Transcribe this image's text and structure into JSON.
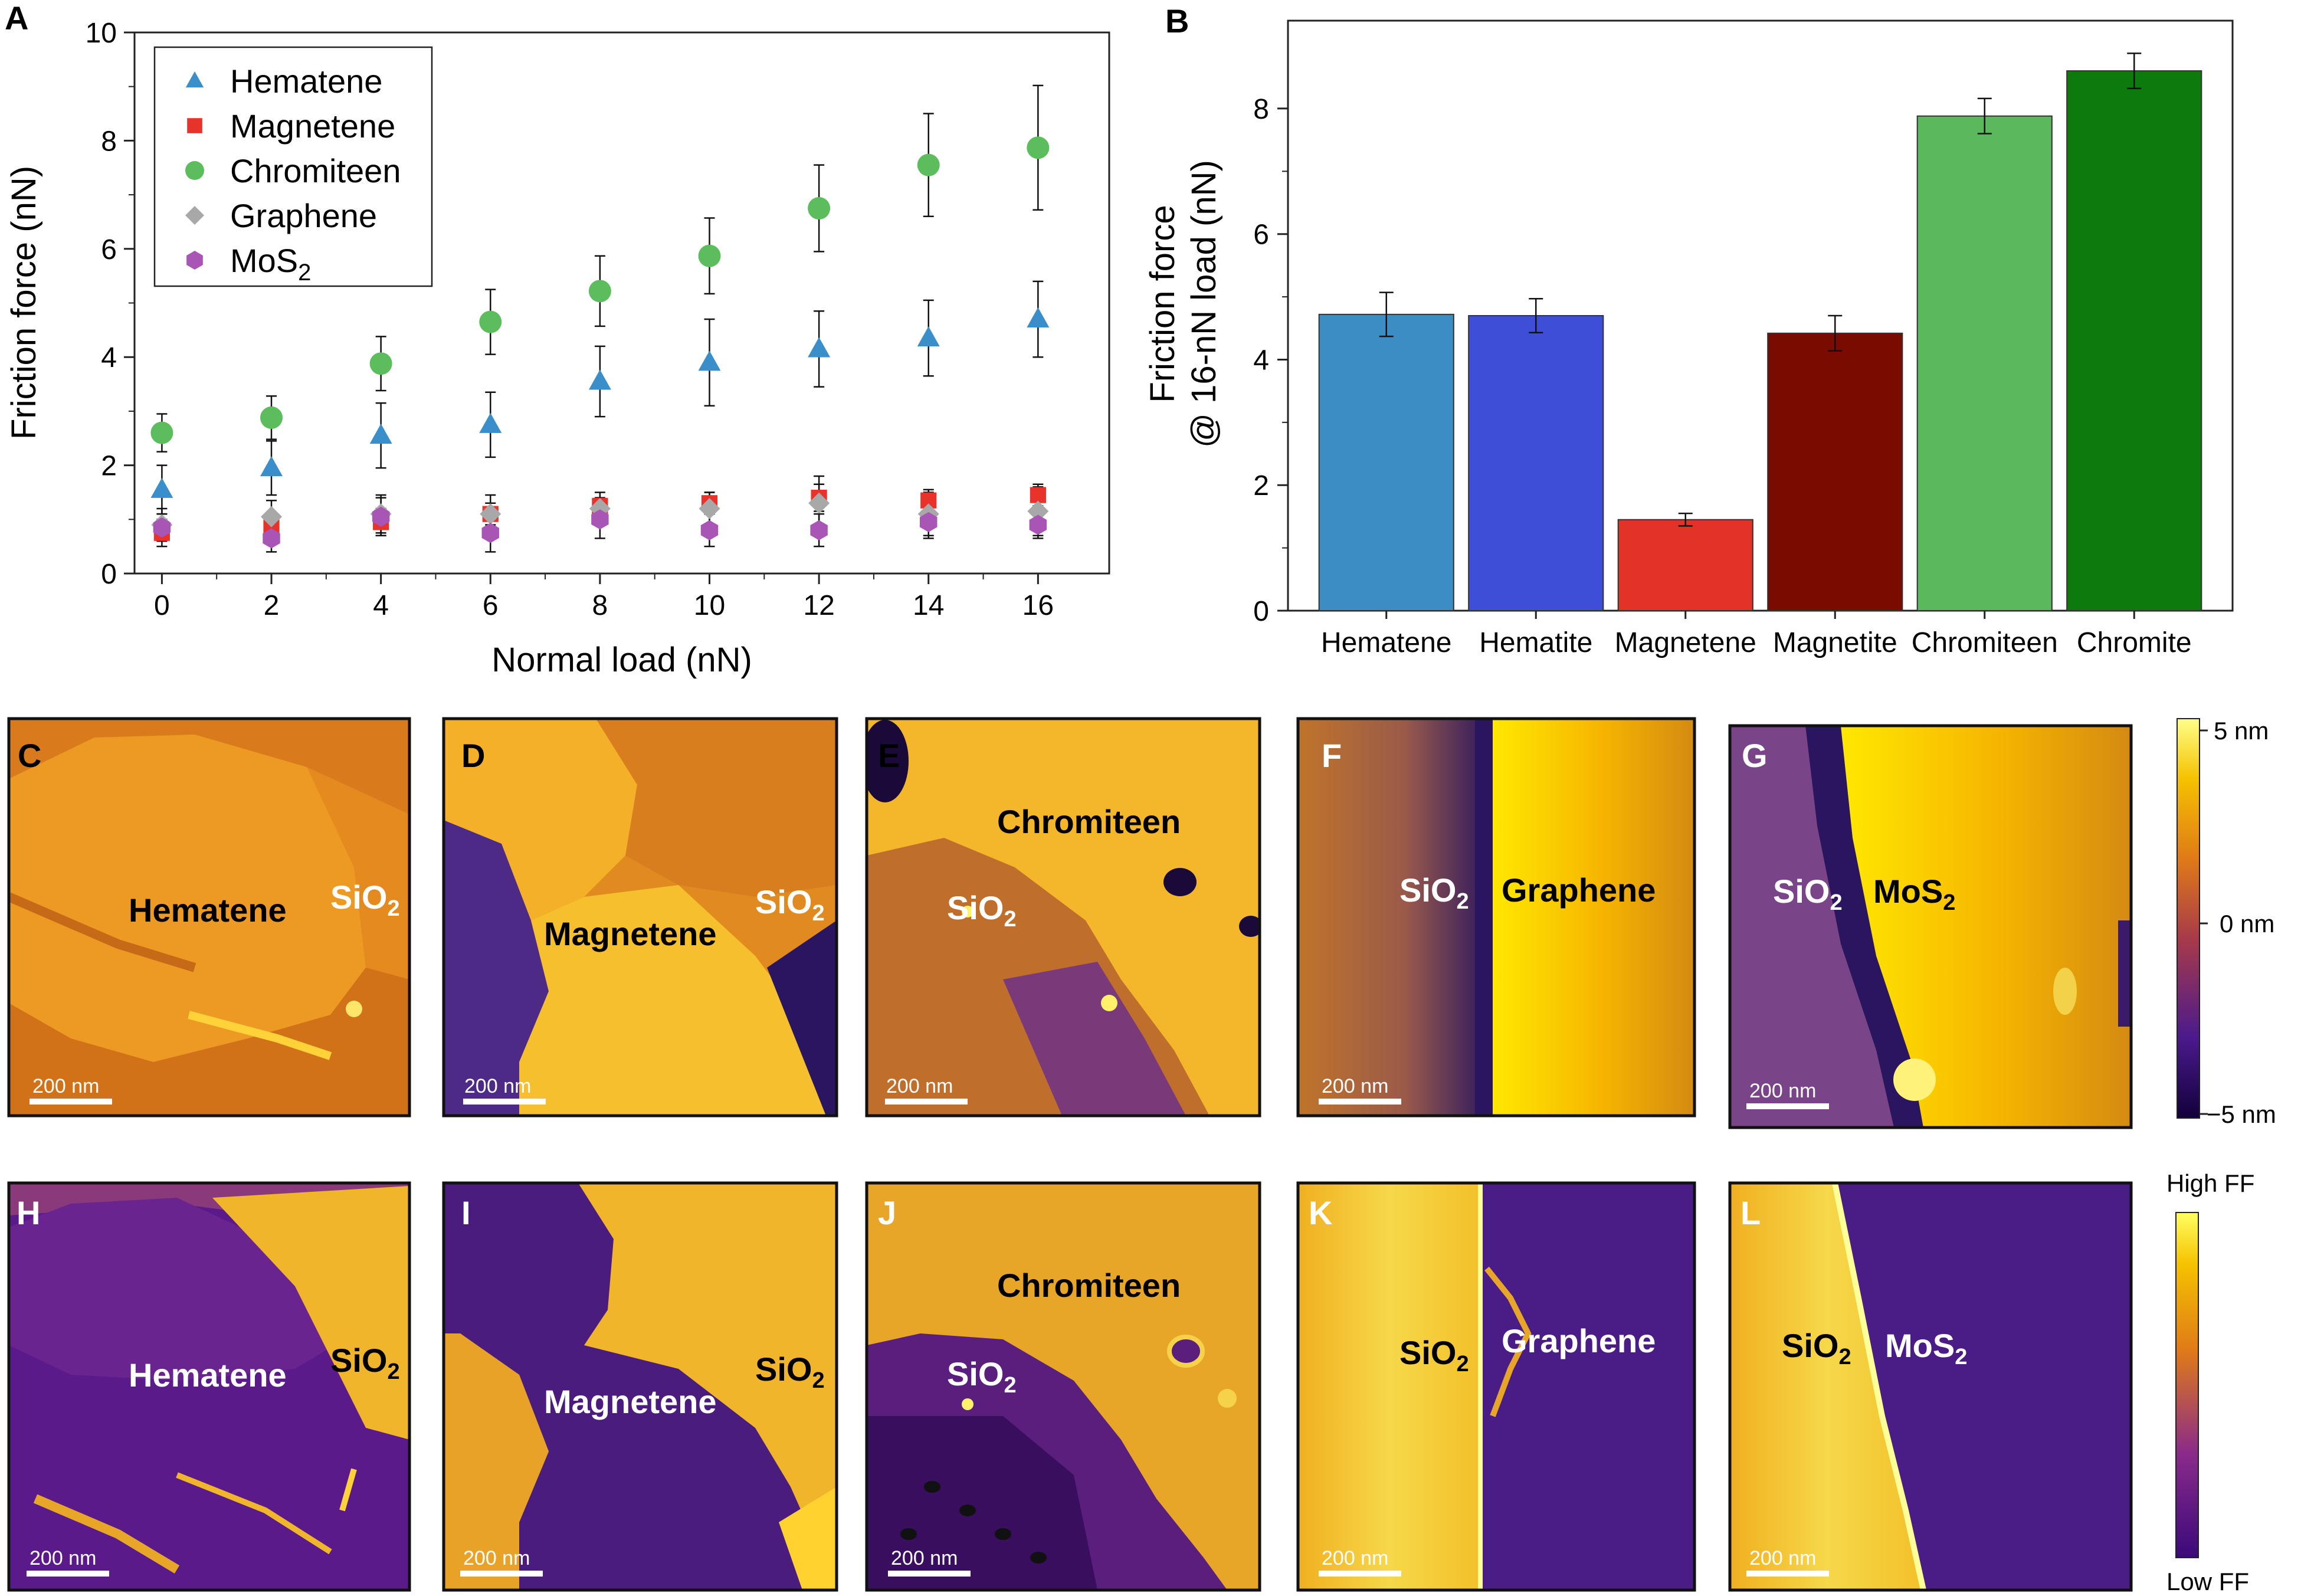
{
  "colors": {
    "hematene": "#3a8fcb",
    "magnetene": "#e8332a",
    "chromiteen": "#5cbd5c",
    "graphene": "#a8a8a8",
    "mos2": "#a855b5",
    "bar_hematene": "#3c8dc4",
    "bar_hematite": "#3f4ed6",
    "bar_magnetene": "#e33228",
    "bar_magnetite": "#7a0b00",
    "bar_chromiteen": "#5cb85c",
    "bar_chromite": "#0d7a0d"
  },
  "chart_data": [
    {
      "type": "scatter",
      "panel": "A",
      "xlabel": "Normal load (nN)",
      "ylabel": "Friction force (nN)",
      "xlim": [
        -0.5,
        17.3
      ],
      "ylim": [
        0,
        10
      ],
      "xticks": [
        0,
        2,
        4,
        6,
        8,
        10,
        12,
        14,
        16
      ],
      "yticks": [
        0,
        2,
        4,
        6,
        8,
        10
      ],
      "legend_position": "top-left",
      "x": [
        0,
        2,
        4,
        6,
        8,
        10,
        12,
        14,
        16
      ],
      "series": [
        {
          "name": "Hematene",
          "marker": "triangle",
          "color_key": "hematene",
          "values": [
            1.55,
            1.95,
            2.55,
            2.75,
            3.55,
            3.9,
            4.15,
            4.35,
            4.7
          ],
          "errors": [
            0.45,
            0.5,
            0.6,
            0.6,
            0.65,
            0.8,
            0.7,
            0.7,
            0.7
          ]
        },
        {
          "name": "Magnetene",
          "marker": "square",
          "color_key": "magnetene",
          "values": [
            0.75,
            0.85,
            0.95,
            1.1,
            1.25,
            1.3,
            1.4,
            1.35,
            1.45
          ],
          "errors": [
            0.25,
            0.25,
            0.25,
            0.2,
            0.15,
            0.2,
            0.25,
            0.2,
            0.2
          ]
        },
        {
          "name": "Chromiteen",
          "marker": "circle",
          "color_key": "chromiteen",
          "values": [
            2.6,
            2.88,
            3.88,
            4.65,
            5.22,
            5.87,
            6.75,
            7.55,
            7.87
          ],
          "errors": [
            0.35,
            0.4,
            0.5,
            0.6,
            0.65,
            0.7,
            0.8,
            0.95,
            1.15
          ]
        },
        {
          "name": "Graphene",
          "marker": "diamond",
          "color_key": "graphene",
          "values": [
            0.9,
            1.05,
            1.1,
            1.1,
            1.2,
            1.2,
            1.3,
            1.1,
            1.15
          ],
          "errors": [
            0.3,
            0.3,
            0.35,
            0.35,
            0.3,
            0.3,
            0.5,
            0.4,
            0.45
          ]
        },
        {
          "name": "MoS2",
          "marker": "hexagon",
          "color_key": "mos2",
          "values": [
            0.85,
            0.65,
            1.05,
            0.75,
            1.0,
            0.8,
            0.8,
            0.95,
            0.9
          ],
          "errors": [
            0.25,
            0.25,
            0.35,
            0.35,
            0.35,
            0.3,
            0.3,
            0.3,
            0.25
          ]
        }
      ]
    },
    {
      "type": "bar",
      "panel": "B",
      "ylabel_line1": "Friction force",
      "ylabel_line2": "@ 16-nN load (nN)",
      "ylim": [
        0,
        9.4
      ],
      "yticks": [
        0,
        2,
        4,
        6,
        8
      ],
      "categories": [
        "Hematene",
        "Hematite",
        "Magnetene",
        "Magnetite",
        "Chromiteen",
        "Chromite"
      ],
      "values": [
        4.72,
        4.7,
        1.45,
        4.42,
        7.88,
        8.6
      ],
      "errors": [
        0.35,
        0.27,
        0.1,
        0.28,
        0.28,
        0.28
      ],
      "color_keys": [
        "bar_hematene",
        "bar_hematite",
        "bar_magnetene",
        "bar_magnetite",
        "bar_chromiteen",
        "bar_chromite"
      ]
    }
  ],
  "panel_labels": {
    "a": "A",
    "b": "B"
  },
  "images": {
    "c": {
      "letter": "C",
      "label1": "Hematene",
      "label2": "SiO",
      "label2_sub": "2",
      "scalebar": "200 nm"
    },
    "d": {
      "letter": "D",
      "label1": "Magnetene",
      "label2": "SiO",
      "label2_sub": "2",
      "scalebar": "200 nm"
    },
    "e": {
      "letter": "E",
      "label1": "Chromiteen",
      "label2": "SiO",
      "label2_sub": "2",
      "scalebar": "200 nm"
    },
    "f": {
      "letter": "F",
      "label1": "SiO",
      "label1_sub": "2",
      "label2": "Graphene",
      "scalebar": "200 nm"
    },
    "g": {
      "letter": "G",
      "label1": "SiO",
      "label1_sub": "2",
      "label2": "MoS",
      "label2_sub": "2",
      "scalebar": "200 nm"
    },
    "h": {
      "letter": "H",
      "label1": "Hematene",
      "label2": "SiO",
      "label2_sub": "2",
      "scalebar": "200 nm"
    },
    "i": {
      "letter": "I",
      "label1": "Magnetene",
      "label2": "SiO",
      "label2_sub": "2",
      "scalebar": "200 nm"
    },
    "j": {
      "letter": "J",
      "label1": "Chromiteen",
      "label2": "SiO",
      "label2_sub": "2",
      "scalebar": "200 nm"
    },
    "k": {
      "letter": "K",
      "label1": "SiO",
      "label1_sub": "2",
      "label2": "Graphene",
      "scalebar": "200 nm"
    },
    "l": {
      "letter": "L",
      "label1": "SiO",
      "label1_sub": "2",
      "label2": "MoS",
      "label2_sub": "2",
      "scalebar": "200 nm"
    }
  },
  "colorbar_height": {
    "top": "5 nm",
    "mid": "0 nm",
    "bottom": "−5 nm"
  },
  "colorbar_friction": {
    "top": "High FF",
    "bottom": "Low FF"
  }
}
